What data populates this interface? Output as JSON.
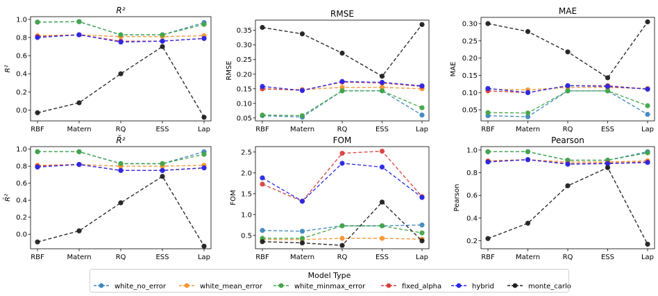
{
  "chart_data": [
    {
      "type": "line",
      "title": "R²",
      "ylabel": "R²",
      "categories": [
        "RBF",
        "Matern",
        "RQ",
        "ESS",
        "Lap"
      ],
      "yticks": [
        "0.0",
        "0.2",
        "0.4",
        "0.6",
        "0.8",
        "1.0"
      ],
      "ylim": [
        -0.12,
        1.03
      ],
      "series": [
        {
          "name": "white_no_error",
          "values": [
            0.97,
            0.975,
            0.83,
            0.83,
            0.965
          ]
        },
        {
          "name": "white_mean_error",
          "values": [
            0.82,
            0.83,
            0.81,
            0.81,
            0.82
          ]
        },
        {
          "name": "white_minmax_error",
          "values": [
            0.97,
            0.975,
            0.83,
            0.83,
            0.945
          ]
        },
        {
          "name": "fixed_alpha",
          "values": [
            0.81,
            0.83,
            0.76,
            0.76,
            0.79
          ]
        },
        {
          "name": "hybrid",
          "values": [
            0.8,
            0.83,
            0.75,
            0.76,
            0.79
          ]
        },
        {
          "name": "monte_carlo",
          "values": [
            -0.03,
            0.08,
            0.4,
            0.7,
            -0.08
          ]
        }
      ]
    },
    {
      "type": "line",
      "title": "RMSE",
      "ylabel": "RMSE",
      "categories": [
        "RBF",
        "Matern",
        "RQ",
        "ESS",
        "Lap"
      ],
      "yticks": [
        "0.05",
        "0.10",
        "0.15",
        "0.20",
        "0.25",
        "0.30",
        "0.35"
      ],
      "ylim": [
        0.04,
        0.385
      ],
      "series": [
        {
          "name": "white_no_error",
          "values": [
            0.058,
            0.053,
            0.143,
            0.143,
            0.06
          ]
        },
        {
          "name": "white_mean_error",
          "values": [
            0.15,
            0.147,
            0.155,
            0.155,
            0.15
          ]
        },
        {
          "name": "white_minmax_error",
          "values": [
            0.06,
            0.058,
            0.143,
            0.143,
            0.085
          ]
        },
        {
          "name": "fixed_alpha",
          "values": [
            0.15,
            0.145,
            0.173,
            0.17,
            0.158
          ]
        },
        {
          "name": "hybrid",
          "values": [
            0.158,
            0.144,
            0.175,
            0.172,
            0.16
          ]
        },
        {
          "name": "monte_carlo",
          "values": [
            0.36,
            0.338,
            0.272,
            0.193,
            0.37
          ]
        }
      ]
    },
    {
      "type": "line",
      "title": "MAE",
      "ylabel": "MAE",
      "categories": [
        "RBF",
        "Matern",
        "RQ",
        "ESS",
        "Lap"
      ],
      "yticks": [
        "0.05",
        "0.10",
        "0.15",
        "0.20",
        "0.25",
        "0.30"
      ],
      "ylim": [
        0.018,
        0.318
      ],
      "series": [
        {
          "name": "white_no_error",
          "values": [
            0.033,
            0.03,
            0.105,
            0.105,
            0.037
          ]
        },
        {
          "name": "white_mean_error",
          "values": [
            0.11,
            0.108,
            0.115,
            0.115,
            0.112
          ]
        },
        {
          "name": "white_minmax_error",
          "values": [
            0.042,
            0.041,
            0.105,
            0.105,
            0.062
          ]
        },
        {
          "name": "fixed_alpha",
          "values": [
            0.105,
            0.1,
            0.12,
            0.12,
            0.11
          ]
        },
        {
          "name": "hybrid",
          "values": [
            0.112,
            0.1,
            0.12,
            0.118,
            0.11
          ]
        },
        {
          "name": "monte_carlo",
          "values": [
            0.3,
            0.277,
            0.218,
            0.143,
            0.305
          ]
        }
      ]
    },
    {
      "type": "line",
      "title": "R̄²",
      "ylabel": "R̄²",
      "categories": [
        "RBF",
        "Matern",
        "RQ",
        "ESS",
        "Lap"
      ],
      "yticks": [
        "0.0",
        "0.2",
        "0.4",
        "0.6",
        "0.8",
        "1.0"
      ],
      "ylim": [
        -0.17,
        1.03
      ],
      "series": [
        {
          "name": "white_no_error",
          "values": [
            0.97,
            0.97,
            0.83,
            0.83,
            0.97
          ]
        },
        {
          "name": "white_mean_error",
          "values": [
            0.81,
            0.82,
            0.8,
            0.8,
            0.81
          ]
        },
        {
          "name": "white_minmax_error",
          "values": [
            0.97,
            0.97,
            0.83,
            0.83,
            0.94
          ]
        },
        {
          "name": "fixed_alpha",
          "values": [
            0.8,
            0.82,
            0.75,
            0.75,
            0.78
          ]
        },
        {
          "name": "hybrid",
          "values": [
            0.79,
            0.82,
            0.75,
            0.75,
            0.78
          ]
        },
        {
          "name": "monte_carlo",
          "values": [
            -0.09,
            0.04,
            0.37,
            0.68,
            -0.14
          ]
        }
      ]
    },
    {
      "type": "line",
      "title": "FOM",
      "ylabel": "FOM",
      "categories": [
        "RBF",
        "Matern",
        "RQ",
        "ESS",
        "Lap"
      ],
      "yticks": [
        "0.5",
        "1.0",
        "1.5",
        "2.0",
        "2.5"
      ],
      "ylim": [
        0.18,
        2.63
      ],
      "series": [
        {
          "name": "white_no_error",
          "values": [
            0.62,
            0.6,
            0.73,
            0.73,
            0.75
          ]
        },
        {
          "name": "white_mean_error",
          "values": [
            0.4,
            0.4,
            0.43,
            0.43,
            0.41
          ]
        },
        {
          "name": "white_minmax_error",
          "values": [
            0.43,
            0.43,
            0.73,
            0.73,
            0.56
          ]
        },
        {
          "name": "fixed_alpha",
          "values": [
            1.73,
            1.32,
            2.47,
            2.52,
            1.43
          ]
        },
        {
          "name": "hybrid",
          "values": [
            1.88,
            1.32,
            2.23,
            2.14,
            1.41
          ]
        },
        {
          "name": "monte_carlo",
          "values": [
            0.35,
            0.32,
            0.26,
            1.3,
            0.37
          ]
        }
      ]
    },
    {
      "type": "line",
      "title": "Pearson",
      "ylabel": "Pearson",
      "categories": [
        "RBF",
        "Matern",
        "RQ",
        "ESS",
        "Lap"
      ],
      "yticks": [
        "0.2",
        "0.4",
        "0.6",
        "0.8",
        "1.0"
      ],
      "ylim": [
        0.13,
        1.03
      ],
      "series": [
        {
          "name": "white_no_error",
          "values": [
            0.985,
            0.985,
            0.91,
            0.91,
            0.985
          ]
        },
        {
          "name": "white_mean_error",
          "values": [
            0.905,
            0.915,
            0.895,
            0.895,
            0.905
          ]
        },
        {
          "name": "white_minmax_error",
          "values": [
            0.985,
            0.985,
            0.91,
            0.91,
            0.975
          ]
        },
        {
          "name": "fixed_alpha",
          "values": [
            0.9,
            0.915,
            0.88,
            0.885,
            0.895
          ]
        },
        {
          "name": "hybrid",
          "values": [
            0.895,
            0.915,
            0.875,
            0.88,
            0.89
          ]
        },
        {
          "name": "monte_carlo",
          "values": [
            0.22,
            0.355,
            0.685,
            0.845,
            0.17
          ]
        }
      ]
    }
  ],
  "legend": {
    "title": "Model Type",
    "placement": "bottom-center",
    "entries": [
      {
        "name": "white_no_error",
        "color": "#3f87bd"
      },
      {
        "name": "white_mean_error",
        "color": "#f59533"
      },
      {
        "name": "white_minmax_error",
        "color": "#43a548"
      },
      {
        "name": "fixed_alpha",
        "color": "#d84141"
      },
      {
        "name": "hybrid",
        "color": "#2727e6"
      },
      {
        "name": "monte_carlo",
        "color": "#202020"
      }
    ]
  }
}
